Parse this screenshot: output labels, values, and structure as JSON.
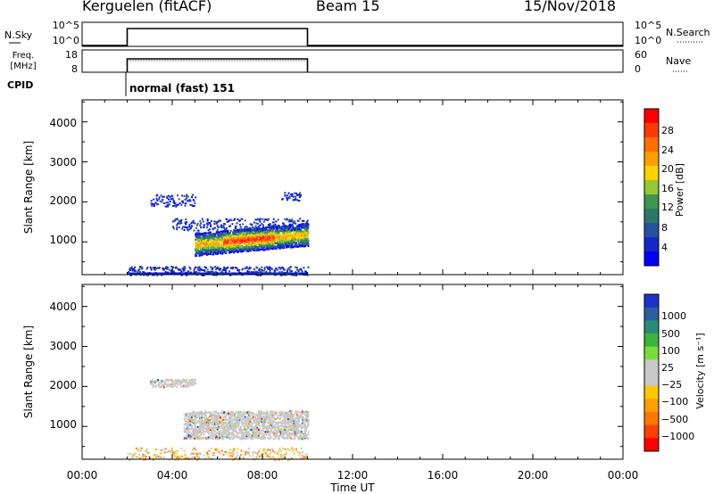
{
  "header": {
    "station": "Kerguelen (fitACF)",
    "beam": "Beam 15",
    "date": "15/Nov/2018"
  },
  "time_axis": {
    "label": "Time UT",
    "ticks": [
      "00:00",
      "04:00",
      "08:00",
      "12:00",
      "16:00",
      "20:00",
      "00:00"
    ]
  },
  "nsky": {
    "label": "N.Sky",
    "left_ticks": [
      "10^5",
      "10^0"
    ],
    "right_ticks": [
      "10^5",
      "10^0"
    ],
    "right_label": "N.Search"
  },
  "freq": {
    "label_line1": "Freq.",
    "label_line2": "[MHz]",
    "left_ticks": [
      "18",
      "8"
    ],
    "right_ticks": [
      "60",
      "0"
    ],
    "right_label": "Nave"
  },
  "cpid": {
    "label": "CPID",
    "mode_text": "normal (fast) 151"
  },
  "power_panel": {
    "ylabel": "Slant Range [km]",
    "yticks": [
      "4000",
      "3000",
      "2000",
      "1000"
    ]
  },
  "velocity_panel": {
    "ylabel": "Slant Range [km]",
    "yticks": [
      "4000",
      "3000",
      "2000",
      "1000"
    ]
  },
  "power_colorbar": {
    "label": "Power [dB]",
    "ticks": [
      "28",
      "24",
      "20",
      "16",
      "12",
      "8",
      "4"
    ],
    "colors": [
      "#ff0000",
      "#ff3a00",
      "#ff7000",
      "#ffa000",
      "#ffd200",
      "#96c832",
      "#3c9650",
      "#2c7864",
      "#2850a0",
      "#1428c8",
      "#0000ff"
    ]
  },
  "velocity_colorbar": {
    "label": "Velocity [m s⁻¹]",
    "ticks": [
      "1000",
      "500",
      "100",
      "25",
      "−25",
      "−100",
      "−500",
      "−1000"
    ],
    "colors": [
      "#1e32c8",
      "#2860a0",
      "#288c78",
      "#3cb43c",
      "#78dc3c",
      "#c8c8c8",
      "#c8c8c8",
      "#ffc800",
      "#ffa000",
      "#ff7800",
      "#ff4000",
      "#ff0000"
    ]
  },
  "chart_data": {
    "type": "heatmap",
    "x": {
      "label": "Time UT",
      "range": [
        "00:00",
        "24:00"
      ]
    },
    "y": {
      "label": "Slant Range [km]",
      "range": [
        180,
        4550
      ]
    },
    "data_window": [
      "02:00",
      "10:00"
    ],
    "panels": [
      {
        "name": "Power",
        "units": "dB",
        "scale": [
          0,
          30
        ],
        "features": [
          {
            "kind": "intense",
            "time": [
              "05:00",
              "10:00"
            ],
            "range_km": [
              700,
              1300
            ],
            "peak_db": 28
          },
          {
            "kind": "scatter",
            "time": [
              "04:00",
              "10:00"
            ],
            "range_km": [
              1300,
              1600
            ],
            "peak_db": 6
          },
          {
            "kind": "scatter",
            "time": [
              "03:00",
              "05:00"
            ],
            "range_km": [
              1900,
              2200
            ],
            "peak_db": 5
          },
          {
            "kind": "scatter",
            "time": [
              "08:50",
              "09:40"
            ],
            "range_km": [
              2050,
              2250
            ],
            "peak_db": 5
          },
          {
            "kind": "ground",
            "time": [
              "02:00",
              "10:00"
            ],
            "range_km": [
              180,
              400
            ],
            "peak_db": 5
          }
        ]
      },
      {
        "name": "Velocity",
        "units": "m s-1",
        "scale": [
          -1000,
          1000
        ],
        "features": [
          {
            "kind": "low-velocity",
            "time": [
              "04:30",
              "10:00"
            ],
            "range_km": [
              700,
              1400
            ],
            "typical": 0
          },
          {
            "kind": "scatter",
            "time": [
              "03:00",
              "05:00"
            ],
            "range_km": [
              2000,
              2200
            ],
            "typical": 0
          }
        ]
      }
    ]
  }
}
